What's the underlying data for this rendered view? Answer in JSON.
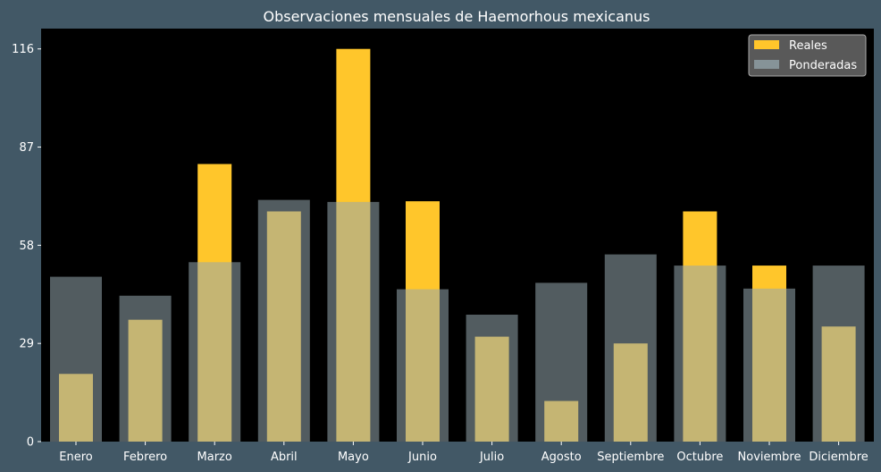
{
  "chart_data": {
    "type": "bar",
    "title": "Observaciones mensuales de Haemorhous mexicanus",
    "xlabel": "",
    "ylabel": "",
    "categories": [
      "Enero",
      "Febrero",
      "Marzo",
      "Abril",
      "Mayo",
      "Junio",
      "Julio",
      "Agosto",
      "Septiembre",
      "Octubre",
      "Noviembre",
      "Diciembre"
    ],
    "series": [
      {
        "name": "Reales",
        "values": [
          20,
          36,
          82,
          68,
          116,
          71,
          31,
          12,
          29,
          68,
          52,
          34
        ],
        "color": "#ffc62b"
      },
      {
        "name": "Ponderadas",
        "values": [
          48.7,
          43.1,
          53,
          71.4,
          70.8,
          45,
          37.5,
          46.9,
          55.3,
          52,
          45.2,
          52
        ],
        "color": "#96a7ae"
      }
    ],
    "yticks": [
      0,
      29,
      58,
      87,
      116
    ],
    "ylim": [
      0,
      122
    ],
    "legend": "top-right",
    "grid": false,
    "background": "#000000",
    "figure_background": "#425866"
  }
}
